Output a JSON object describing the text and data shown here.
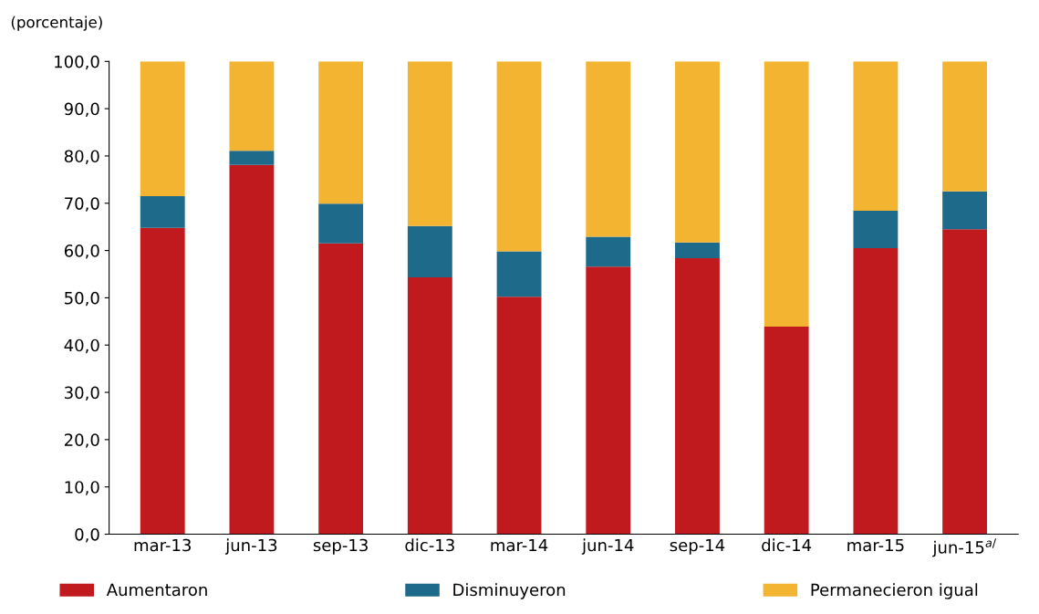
{
  "chart_data": {
    "type": "bar",
    "stacked": true,
    "ylabel": "(porcentaje)",
    "categories": [
      "mar-13",
      "jun-13",
      "sep-13",
      "dic-13",
      "mar-14",
      "jun-14",
      "sep-14",
      "dic-14",
      "mar-15",
      "jun-15$^{a/}$"
    ],
    "series": [
      {
        "name": "Aumentaron",
        "color": "#c0191e",
        "values": [
          64.8,
          78.1,
          61.5,
          54.3,
          50.2,
          56.6,
          58.4,
          43.9,
          60.5,
          64.5
        ]
      },
      {
        "name": "Disminuyeron",
        "color": "#1e6a8a",
        "values": [
          6.7,
          3.0,
          8.4,
          10.9,
          9.6,
          6.3,
          3.3,
          0.0,
          7.9,
          8.0
        ]
      },
      {
        "name": "Permanecieron igual",
        "color": "#f2b431",
        "values": [
          28.5,
          18.9,
          30.1,
          34.8,
          40.2,
          37.1,
          38.3,
          56.1,
          31.6,
          27.5
        ]
      }
    ],
    "ylim": [
      0,
      100
    ],
    "yticks": [
      {
        "value": 0,
        "label": "0,0"
      },
      {
        "value": 10,
        "label": "10,0"
      },
      {
        "value": 20,
        "label": "20,0"
      },
      {
        "value": 30,
        "label": "30,0"
      },
      {
        "value": 40,
        "label": "40,0"
      },
      {
        "value": 50,
        "label": "50,0"
      },
      {
        "value": 60,
        "label": "60,0"
      },
      {
        "value": 70,
        "label": "70,0"
      },
      {
        "value": 80,
        "label": "80,0"
      },
      {
        "value": 90,
        "label": "90,0"
      },
      {
        "value": 100,
        "label": "100,0"
      }
    ],
    "grid": false,
    "legend": "bottom"
  }
}
